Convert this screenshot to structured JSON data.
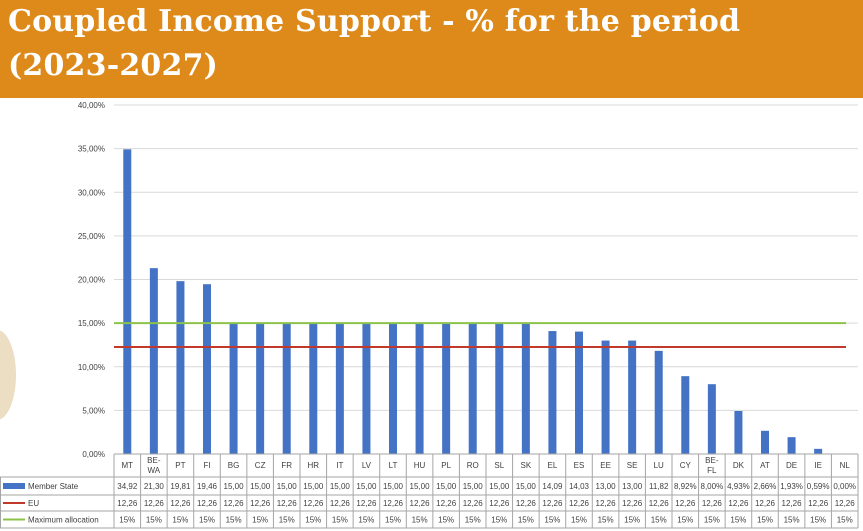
{
  "header": {
    "title": "Coupled Income Support - % for the period (2023-2027)",
    "background": "#dd8a1a"
  },
  "chart_data": {
    "type": "bar",
    "title": "",
    "xlabel": "",
    "ylabel": "",
    "ylim": [
      0,
      40
    ],
    "y_ticks": [
      "0,00%",
      "5,00%",
      "10,00%",
      "15,00%",
      "20,00%",
      "25,00%",
      "30,00%",
      "35,00%",
      "40,00%"
    ],
    "grid": true,
    "categories": [
      "MT",
      "BE-WA",
      "PT",
      "FI",
      "BG",
      "CZ",
      "FR",
      "HR",
      "IT",
      "LV",
      "LT",
      "HU",
      "PL",
      "RO",
      "SL",
      "SK",
      "EL",
      "ES",
      "EE",
      "SE",
      "LU",
      "CY",
      "BE-FL",
      "DK",
      "AT",
      "DE",
      "IE",
      "NL"
    ],
    "series": [
      {
        "name": "Member State",
        "kind": "bar",
        "color": "#4472c4",
        "values": [
          34.92,
          21.3,
          19.81,
          19.46,
          15.0,
          15.0,
          15.0,
          15.0,
          15.0,
          15.0,
          15.0,
          15.0,
          15.0,
          15.0,
          15.0,
          15.0,
          14.09,
          14.03,
          13.0,
          13.0,
          11.82,
          8.92,
          8.0,
          4.93,
          2.66,
          1.93,
          0.59,
          0.0
        ],
        "labels": [
          "34,92",
          "21,30",
          "19,81",
          "19,46",
          "15,00",
          "15,00",
          "15,00",
          "15,00",
          "15,00",
          "15,00",
          "15,00",
          "15,00",
          "15,00",
          "15,00",
          "15,00",
          "15,00",
          "14,09",
          "14,03",
          "13,00",
          "13,00",
          "11,82",
          "8,92%",
          "8,00%",
          "4,93%",
          "2,66%",
          "1,93%",
          "0,59%",
          "0,00%"
        ]
      },
      {
        "name": "EU",
        "kind": "line",
        "color": "#c0392b",
        "values": [
          12.26,
          12.26,
          12.26,
          12.26,
          12.26,
          12.26,
          12.26,
          12.26,
          12.26,
          12.26,
          12.26,
          12.26,
          12.26,
          12.26,
          12.26,
          12.26,
          12.26,
          12.26,
          12.26,
          12.26,
          12.26,
          12.26,
          12.26,
          12.26,
          12.26,
          12.26,
          12.26,
          12.26
        ],
        "labels": [
          "12,26",
          "12,26",
          "12,26",
          "12,26",
          "12,26",
          "12,26",
          "12,26",
          "12,26",
          "12,26",
          "12,26",
          "12,26",
          "12,26",
          "12,26",
          "12,26",
          "12,26",
          "12,26",
          "12,26",
          "12,26",
          "12,26",
          "12,26",
          "12,26",
          "12,26",
          "12,26",
          "12,26",
          "12,26",
          "12,26",
          "12,26",
          "12,26"
        ]
      },
      {
        "name": "Maximum allocation",
        "kind": "line",
        "color": "#8bc34a",
        "values": [
          15,
          15,
          15,
          15,
          15,
          15,
          15,
          15,
          15,
          15,
          15,
          15,
          15,
          15,
          15,
          15,
          15,
          15,
          15,
          15,
          15,
          15,
          15,
          15,
          15,
          15,
          15,
          15
        ],
        "labels": [
          "15%",
          "15%",
          "15%",
          "15%",
          "15%",
          "15%",
          "15%",
          "15%",
          "15%",
          "15%",
          "15%",
          "15%",
          "15%",
          "15%",
          "15%",
          "15%",
          "15%",
          "15%",
          "15%",
          "15%",
          "15%",
          "15%",
          "15%",
          "15%",
          "15%",
          "15%",
          "15%",
          "15%"
        ]
      }
    ],
    "legend": "data table below chart"
  }
}
